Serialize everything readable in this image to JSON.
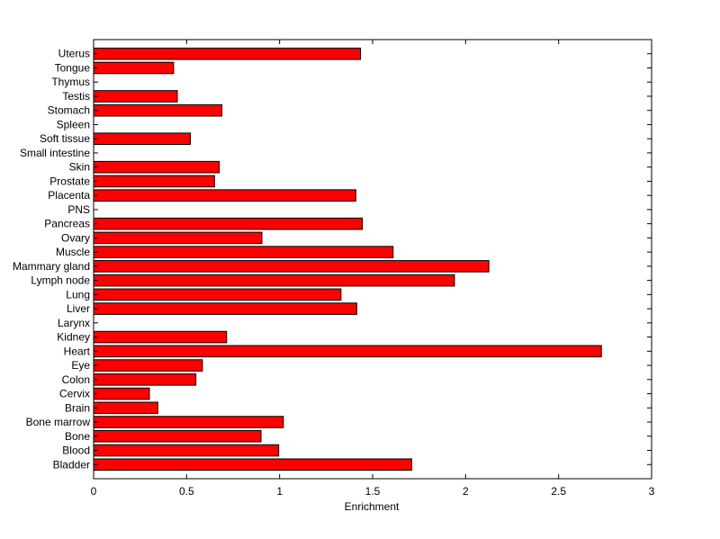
{
  "chart_data": {
    "type": "bar",
    "orientation": "horizontal",
    "title": "",
    "xlabel": "Enrichment",
    "ylabel": "",
    "xlim": [
      0,
      3
    ],
    "xticks": [
      "0",
      "0.5",
      "1",
      "1.5",
      "2",
      "2.5",
      "3"
    ],
    "grid": false,
    "legend": "none",
    "bar_color": "#ff0000",
    "bar_edge_color": "#000000",
    "categories": [
      "Bladder",
      "Blood",
      "Bone",
      "Bone marrow",
      "Brain",
      "Cervix",
      "Colon",
      "Eye",
      "Heart",
      "Kidney",
      "Larynx",
      "Liver",
      "Lung",
      "Lymph node",
      "Mammary gland",
      "Muscle",
      "Ovary",
      "Pancreas",
      "PNS",
      "Placenta",
      "Prostate",
      "Skin",
      "Small intestine",
      "Soft tissue",
      "Spleen",
      "Stomach",
      "Testis",
      "Thymus",
      "Tongue",
      "Uterus"
    ],
    "values": [
      1.71,
      0.995,
      0.9,
      1.02,
      0.345,
      0.3,
      0.55,
      0.585,
      2.73,
      0.715,
      0,
      1.415,
      1.33,
      1.94,
      2.125,
      1.61,
      0.905,
      1.445,
      0,
      1.41,
      0.65,
      0.675,
      0,
      0.52,
      0,
      0.69,
      0.45,
      0,
      0.43,
      1.435
    ]
  }
}
